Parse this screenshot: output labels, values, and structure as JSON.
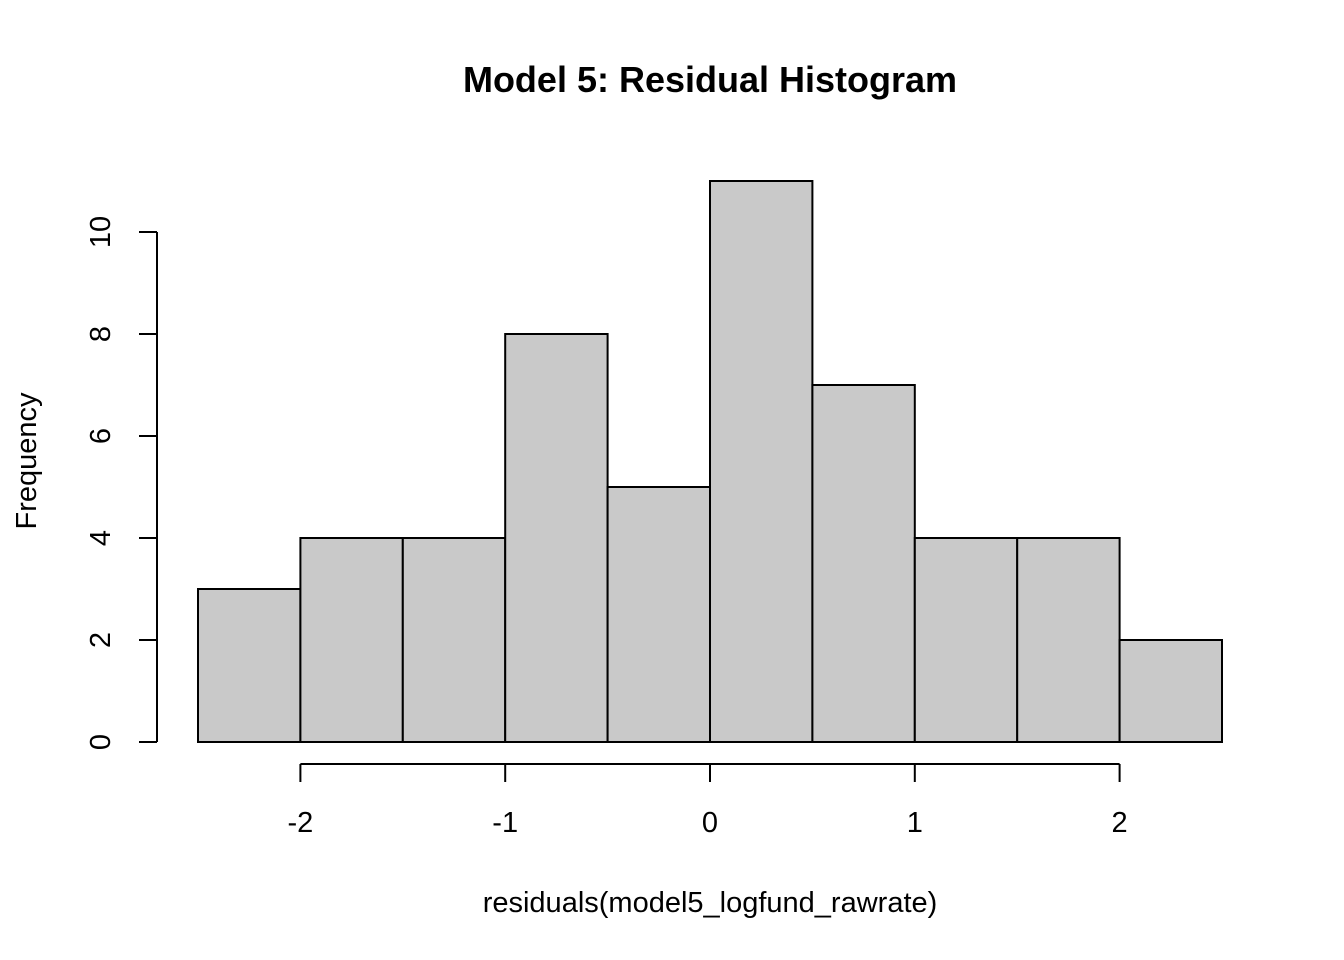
{
  "chart_data": {
    "type": "bar",
    "title": "Model 5: Residual Histogram",
    "xlabel": "residuals(model5_logfund_rawrate)",
    "ylabel": "Frequency",
    "bins": [
      {
        "x0": -2.5,
        "x1": -2.0,
        "count": 3
      },
      {
        "x0": -2.0,
        "x1": -1.5,
        "count": 4
      },
      {
        "x0": -1.5,
        "x1": -1.0,
        "count": 4
      },
      {
        "x0": -1.0,
        "x1": -0.5,
        "count": 8
      },
      {
        "x0": -0.5,
        "x1": 0.0,
        "count": 5
      },
      {
        "x0": 0.0,
        "x1": 0.5,
        "count": 11
      },
      {
        "x0": 0.5,
        "x1": 1.0,
        "count": 7
      },
      {
        "x0": 1.0,
        "x1": 1.5,
        "count": 4
      },
      {
        "x0": 1.5,
        "x1": 2.0,
        "count": 4
      },
      {
        "x0": 2.0,
        "x1": 2.5,
        "count": 2
      }
    ],
    "xlim": [
      -2.5,
      2.5
    ],
    "ylim": [
      0,
      11
    ],
    "xticks": [
      -2,
      -1,
      0,
      1,
      2
    ],
    "xtick_labels": [
      "-2",
      "-1",
      "0",
      "1",
      "2"
    ],
    "yticks": [
      0,
      2,
      4,
      6,
      8,
      10
    ],
    "ytick_labels": [
      "0",
      "2",
      "4",
      "6",
      "8",
      "10"
    ],
    "grid": false,
    "colors": {
      "bar_fill": "#c9c9c9",
      "bar_stroke": "#000000"
    }
  }
}
